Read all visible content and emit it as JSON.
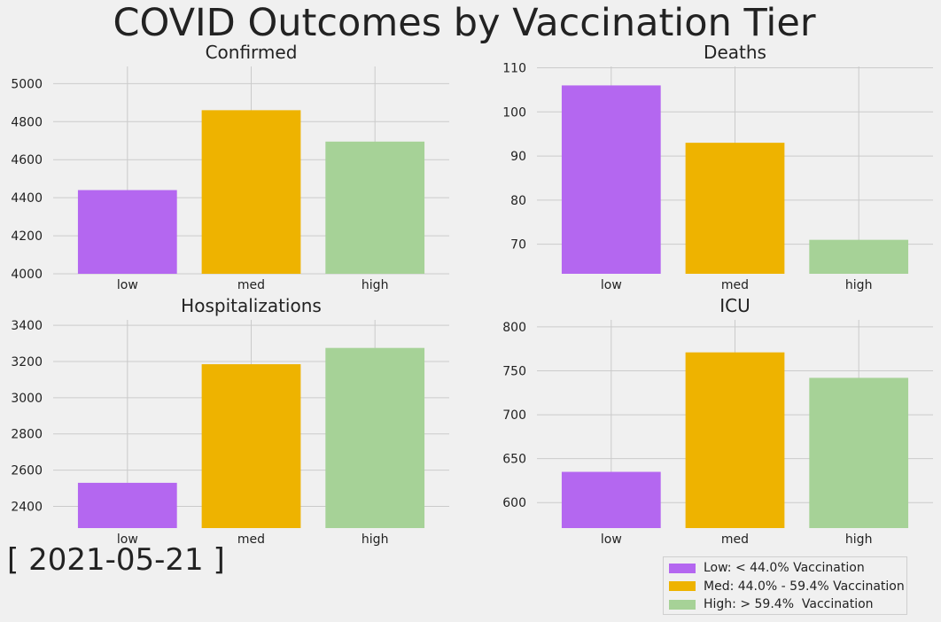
{
  "suptitle": "COVID Outcomes by Vaccination Tier",
  "date_label": "[ 2021-05-21 ]",
  "colors": {
    "low": "#b467f0",
    "med": "#eeb300",
    "high": "#a6d297"
  },
  "legend": [
    {
      "key": "low",
      "label": "Low: < 44.0% Vaccination"
    },
    {
      "key": "med",
      "label": "Med: 44.0% - 59.4% Vaccination"
    },
    {
      "key": "high",
      "label": "High: > 59.4%  Vaccination"
    }
  ],
  "chart_data": [
    {
      "type": "bar",
      "title": "Confirmed",
      "categories": [
        "low",
        "med",
        "high"
      ],
      "values": [
        4440,
        4860,
        4695
      ],
      "ylim": [
        4000,
        5090
      ],
      "yticks": [
        4000,
        4200,
        4400,
        4600,
        4800,
        5000
      ],
      "grid": true
    },
    {
      "type": "bar",
      "title": "Deaths",
      "categories": [
        "low",
        "med",
        "high"
      ],
      "values": [
        106,
        93,
        71
      ],
      "ylim": [
        63.3,
        110.3
      ],
      "yticks": [
        70,
        80,
        90,
        100,
        110
      ],
      "grid": true
    },
    {
      "type": "bar",
      "title": "Hospitalizations",
      "categories": [
        "low",
        "med",
        "high"
      ],
      "values": [
        2530,
        3185,
        3275
      ],
      "ylim": [
        2280,
        3430
      ],
      "yticks": [
        2400,
        2600,
        2800,
        3000,
        3200,
        3400
      ],
      "grid": true
    },
    {
      "type": "bar",
      "title": "ICU",
      "categories": [
        "low",
        "med",
        "high"
      ],
      "values": [
        635,
        771,
        742
      ],
      "ylim": [
        571,
        808
      ],
      "yticks": [
        600,
        650,
        700,
        750,
        800
      ],
      "grid": true
    }
  ]
}
